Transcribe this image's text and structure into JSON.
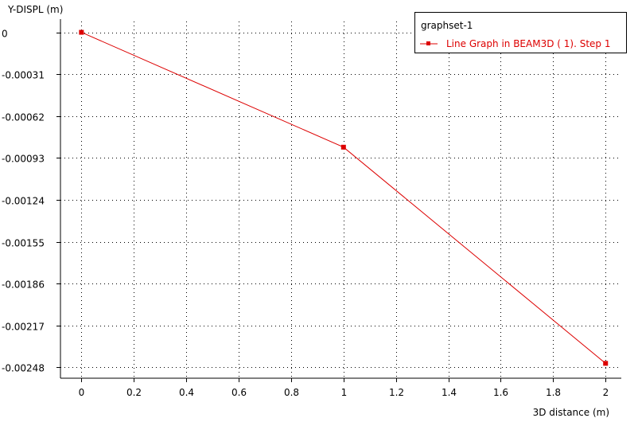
{
  "chart_data": {
    "type": "line",
    "ylabel": "Y-DISPL (m)",
    "xlabel": "3D distance (m)",
    "x": [
      0,
      1,
      2
    ],
    "series": [
      {
        "name": "Line Graph in BEAM3D ( 1). Step 1",
        "y": [
          0,
          -0.00085,
          -0.00245
        ]
      }
    ],
    "xlim": [
      -0.08,
      2.06
    ],
    "ylim": [
      -0.00256,
      8e-05
    ],
    "xticks": [
      "0",
      "0.2",
      "0.4",
      "0.6",
      "0.8",
      "1",
      "1.2",
      "1.4",
      "1.6",
      "1.8",
      "2"
    ],
    "yticks": [
      "0",
      "-0.00031",
      "-0.00062",
      "-0.00093",
      "-0.00124",
      "-0.00155",
      "-0.00186",
      "-0.00217",
      "-0.00248"
    ],
    "grid": true,
    "legend": {
      "title": "graphset-1",
      "placement": "top-right"
    }
  },
  "colors": {
    "series": "#dd0000",
    "grid": "#000000",
    "axis": "#000000"
  }
}
